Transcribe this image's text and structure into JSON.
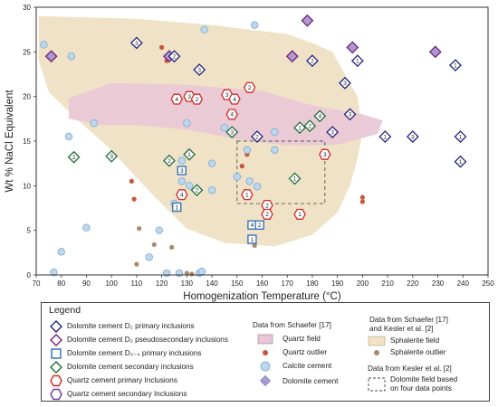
{
  "chart_data": {
    "type": "scatter",
    "title": "",
    "xlabel": "Homogenization Temperature (°C)",
    "ylabel": "Wt % NaCl Equivalent",
    "xlim": [
      70,
      250
    ],
    "ylim": [
      0,
      30
    ],
    "x_ticks": [
      70,
      80,
      90,
      100,
      110,
      120,
      130,
      140,
      150,
      160,
      170,
      180,
      190,
      200,
      210,
      220,
      230,
      240,
      250
    ],
    "y_ticks": [
      0,
      5,
      10,
      15,
      20,
      25,
      30
    ],
    "grid": false,
    "legend_placement": "below plot",
    "colors": {
      "d2_primary": "#23237a",
      "d2_pseudo": "#7a1f6e",
      "d34_primary": "#2a6db3",
      "dolomite_secondary": "#1f6e3a",
      "quartz_primary": "#d22a2a",
      "quartz_secondary": "#6a3a9e",
      "quartz_field": "#e8c8d6",
      "sphalerite_field": "#efe2c6",
      "quartz_outlier": "#c8553a",
      "calcite_cement": "#bcd8ee",
      "calcite_edge": "#7da8cf",
      "dolomite_cement": "#a89bd6",
      "sphalerite_outlier": "#a88a6a"
    },
    "sphalerite_field": [
      [
        71,
        29
      ],
      [
        110,
        28.7
      ],
      [
        140,
        28
      ],
      [
        170,
        27
      ],
      [
        180,
        26
      ],
      [
        188,
        25
      ],
      [
        198,
        20
      ],
      [
        200,
        16
      ],
      [
        198,
        13
      ],
      [
        195,
        10
      ],
      [
        190,
        7
      ],
      [
        180,
        4.5
      ],
      [
        165,
        3.2
      ],
      [
        145,
        3.6
      ],
      [
        130,
        5.2
      ],
      [
        118,
        8.5
      ],
      [
        108,
        11.5
      ],
      [
        98,
        14.5
      ],
      [
        86,
        17.5
      ],
      [
        75,
        20.5
      ],
      [
        71,
        24
      ]
    ],
    "quartz_field": [
      [
        83,
        19.8
      ],
      [
        100,
        21.5
      ],
      [
        130,
        21.3
      ],
      [
        160,
        20.6
      ],
      [
        180,
        19
      ],
      [
        200,
        18
      ],
      [
        208,
        17.3
      ],
      [
        206,
        15.8
      ],
      [
        190,
        14.6
      ],
      [
        170,
        14.5
      ],
      [
        150,
        15.2
      ],
      [
        130,
        16.3
      ],
      [
        110,
        16.8
      ],
      [
        95,
        16.8
      ],
      [
        83,
        17.5
      ]
    ],
    "dolomite_field_box": {
      "x": [
        150,
        185
      ],
      "y": [
        8,
        15
      ]
    },
    "series": [
      {
        "name": "Dolomite cement D2 primary inclusions",
        "marker": "diamond",
        "points": [
          [
            110,
            26,
            "3"
          ],
          [
            125,
            24.5,
            "2"
          ],
          [
            135,
            23,
            "3"
          ],
          [
            180,
            24,
            "2"
          ],
          [
            198,
            24,
            "1"
          ],
          [
            237,
            23.5,
            "1"
          ],
          [
            193,
            21.5,
            "3"
          ],
          [
            195,
            18,
            "3"
          ],
          [
            188,
            16,
            "3"
          ],
          [
            158,
            15.5,
            "2"
          ],
          [
            209,
            15.5,
            "1"
          ],
          [
            220,
            15.5,
            "3"
          ],
          [
            239,
            15.5,
            "1"
          ],
          [
            239,
            12.7,
            "1"
          ]
        ]
      },
      {
        "name": "Dolomite cement D2 pseudosecondary inclusions",
        "marker": "diamond",
        "points": [
          [
            76,
            24.5
          ],
          [
            123,
            24.5
          ],
          [
            172,
            24.5
          ],
          [
            196,
            25.5
          ],
          [
            229,
            25
          ],
          [
            178,
            28.5
          ]
        ]
      },
      {
        "name": "Dolomite cement D3-4 primary inclusions",
        "marker": "square",
        "points": [
          [
            128,
            11.7,
            "3"
          ],
          [
            126,
            7.6,
            "1"
          ],
          [
            156,
            5.6,
            "4"
          ],
          [
            159,
            5.6,
            "2"
          ],
          [
            156,
            4,
            "1"
          ]
        ]
      },
      {
        "name": "Dolomite cement secondary inclusions",
        "marker": "diamond",
        "points": [
          [
            85,
            13.2,
            "2"
          ],
          [
            100,
            13.3,
            "3"
          ],
          [
            123,
            12.8,
            "2"
          ],
          [
            131,
            13.5,
            "1"
          ],
          [
            134,
            9.5,
            "2"
          ],
          [
            148,
            16,
            "3"
          ],
          [
            175,
            16.5,
            "1"
          ],
          [
            179,
            16.7,
            "2"
          ],
          [
            183,
            17.8,
            "4"
          ],
          [
            173,
            10.8,
            "1"
          ]
        ]
      },
      {
        "name": "Quartz cement primary inclusions",
        "marker": "hexagon",
        "points": [
          [
            126,
            19.7,
            "4"
          ],
          [
            131,
            20,
            "3"
          ],
          [
            134,
            19.7,
            "2"
          ],
          [
            146,
            20.2,
            "3"
          ],
          [
            149,
            19.7,
            "4"
          ],
          [
            155,
            21,
            "2"
          ],
          [
            148,
            18,
            "4"
          ],
          [
            154,
            9,
            "1"
          ],
          [
            162,
            7.8,
            "2"
          ],
          [
            162,
            6.8,
            "2"
          ],
          [
            175,
            6.8,
            "1"
          ],
          [
            185,
            13.5,
            "3"
          ],
          [
            128,
            9,
            "4"
          ]
        ]
      },
      {
        "name": "Quartz cement secondary Inclusions",
        "marker": "hexagon",
        "points": []
      },
      {
        "name": "Quartz field",
        "marker": "field",
        "points": []
      },
      {
        "name": "Quartz outlier",
        "marker": "dot",
        "points": [
          [
            120,
            25.5
          ],
          [
            122,
            24
          ],
          [
            108,
            10.5
          ],
          [
            109,
            8.5
          ],
          [
            152,
            12.2
          ],
          [
            200,
            8.7
          ],
          [
            200,
            8.2
          ],
          [
            154,
            13.5
          ]
        ]
      },
      {
        "name": "Calcite cement",
        "marker": "circle",
        "points": [
          [
            73,
            25.8
          ],
          [
            84,
            24.5
          ],
          [
            93,
            17
          ],
          [
            83,
            15.5
          ],
          [
            126,
            19.5
          ],
          [
            130,
            17
          ],
          [
            137,
            27.5
          ],
          [
            140,
            12.5
          ],
          [
            145,
            16.5
          ],
          [
            157,
            28
          ],
          [
            165,
            16
          ],
          [
            128,
            10.5
          ],
          [
            140,
            9.5
          ],
          [
            150,
            11
          ],
          [
            155,
            10.5
          ],
          [
            158,
            9.9
          ],
          [
            131,
            10
          ],
          [
            165,
            14
          ],
          [
            90,
            5.3
          ],
          [
            80,
            2.6
          ],
          [
            77,
            0.3
          ],
          [
            115,
            2
          ],
          [
            122,
            0.2
          ],
          [
            127,
            0.2
          ],
          [
            135,
            0.2
          ],
          [
            136,
            0.4
          ],
          [
            119,
            5
          ],
          [
            125,
            8
          ],
          [
            154,
            14
          ],
          [
            128,
            12.8
          ]
        ]
      },
      {
        "name": "Dolomite cement",
        "marker": "diamond-filled",
        "points": [
          [
            178,
            28.5
          ],
          [
            196,
            25.5
          ],
          [
            229,
            25
          ]
        ]
      },
      {
        "name": "Sphalerite field",
        "marker": "field",
        "points": []
      },
      {
        "name": "Sphalerite outlier",
        "marker": "dot",
        "points": [
          [
            111,
            5.2
          ],
          [
            117,
            3.4
          ],
          [
            124,
            3.1
          ],
          [
            110,
            1.2
          ],
          [
            130,
            0.2
          ],
          [
            132,
            0.1
          ],
          [
            157,
            3.3
          ],
          [
            127,
            0.2
          ]
        ]
      },
      {
        "name": "Dolomite field based on four data points",
        "marker": "dashed-box",
        "points": []
      }
    ]
  },
  "legend": {
    "title": "Legend",
    "items": [
      "Dolomite cement D₂ primary inclusions",
      "Dolomite cement D₂ pseudosecondary inclusions",
      "Dolomite cement D₃₋₄ primary inclusions",
      "Dolomite cement secondary inclusions",
      "Quartz cement primary Inclusions",
      "Quartz cement secondary Inclusions"
    ],
    "schaefer_header": "Data from Schaefer [17]",
    "schaefer_items": [
      "Quartz field",
      "Quartz outlier",
      "Calcite cement",
      "Dolomite cement"
    ],
    "schaefer_kesler_header_1": "Data from Schaefer [17]",
    "schaefer_kesler_header_2": "and Kesler et al. [2]",
    "schaefer_kesler_items": [
      "Sphalerite field",
      "Sphalerite outlier"
    ],
    "kesler_header": "Data from Kesler et al. [2]",
    "kesler_item_1": "Dolomite field based",
    "kesler_item_2": "on four data points"
  }
}
